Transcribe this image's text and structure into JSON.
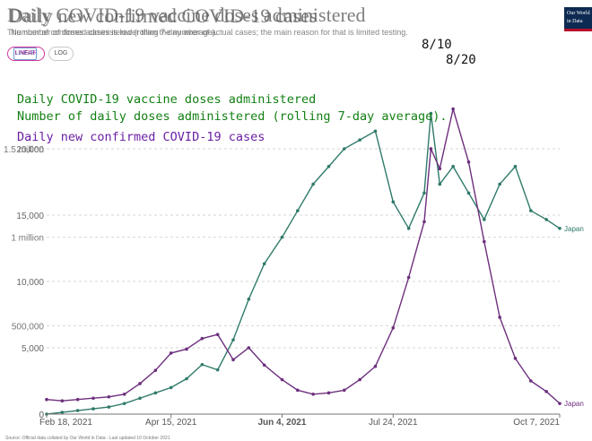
{
  "page": {
    "title_vaccine": "Daily COVID-19 vaccine doses administered",
    "title_cases": "Daily new confirmed COVID-19 cases",
    "subtitle_vaccine": "The number of doses administered (rolling 7-day average).",
    "subtitle_cases": "Number of confirmed cases is lower than the number of actual cases; the main reason for that is limited testing.",
    "source_note": "Source: Official data collated by Our World in Data - Last updated 10 October 2021",
    "logo_text": "Our World in Data"
  },
  "controls": {
    "linear_label": "LINEAR",
    "log_label": "LOG"
  },
  "annotations": {
    "vaccine_title": "Daily COVID-19 vaccine doses administered",
    "vaccine_sub": "Number of daily doses administered (rolling 7-day average).",
    "cases_title": "Daily new confirmed COVID-19 cases",
    "date_1": "8/10",
    "date_2": "8/20"
  },
  "colors": {
    "vaccine": "#2f7a6a",
    "cases": "#6d2f7d",
    "grid": "#d6d6d6",
    "axis": "#777777",
    "vaccine_text": "#138013",
    "cases_text": "#6a1fa3"
  },
  "chart_data": {
    "type": "line",
    "x_dates": [
      "2021-02-18",
      "2021-02-25",
      "2021-03-04",
      "2021-03-11",
      "2021-03-18",
      "2021-03-25",
      "2021-04-01",
      "2021-04-08",
      "2021-04-15",
      "2021-04-22",
      "2021-04-29",
      "2021-05-06",
      "2021-05-13",
      "2021-05-20",
      "2021-05-27",
      "2021-06-04",
      "2021-06-11",
      "2021-06-18",
      "2021-06-25",
      "2021-07-02",
      "2021-07-09",
      "2021-07-16",
      "2021-07-24",
      "2021-07-31",
      "2021-08-07",
      "2021-08-10",
      "2021-08-14",
      "2021-08-20",
      "2021-08-27",
      "2021-09-03",
      "2021-09-10",
      "2021-09-17",
      "2021-09-24",
      "2021-10-01",
      "2021-10-07"
    ],
    "series": [
      {
        "name": "Japan",
        "metric": "Daily COVID-19 vaccine doses administered",
        "unit": "doses",
        "values": [
          0,
          10000,
          20000,
          30000,
          40000,
          60000,
          90000,
          120000,
          150000,
          200000,
          280000,
          250000,
          420000,
          650000,
          850000,
          1000000,
          1150000,
          1300000,
          1400000,
          1500000,
          1550000,
          1600000,
          1200000,
          1050000,
          1250000,
          1700000,
          1300000,
          1400000,
          1250000,
          1100000,
          1300000,
          1400000,
          1150000,
          1100000,
          1050000
        ]
      },
      {
        "name": "Japan",
        "metric": "Daily new confirmed COVID-19 cases",
        "unit": "cases",
        "values": [
          1100,
          1000,
          1100,
          1200,
          1300,
          1500,
          2300,
          3300,
          4600,
          4900,
          5700,
          6000,
          4100,
          5000,
          3700,
          2600,
          1800,
          1500,
          1600,
          1800,
          2600,
          3600,
          6500,
          10300,
          14500,
          20000,
          18500,
          23000,
          19000,
          13000,
          7300,
          4200,
          2500,
          1700,
          800
        ]
      }
    ],
    "y_axis_left": {
      "label": "",
      "ticks": [
        "0",
        "5,000",
        "10,000",
        "15,000",
        "20,000"
      ],
      "range": [
        0,
        25000
      ]
    },
    "y_axis_right": {
      "label": "",
      "ticks": [
        "0",
        "500,000",
        "1 million",
        "1.5 million"
      ],
      "range": [
        0,
        1875000
      ]
    },
    "x_axis": {
      "ticks": [
        "Feb 18, 2021",
        "Apr 15, 2021",
        "Jun 4, 2021",
        "Jul 24, 2021",
        "Oct 7, 2021"
      ]
    },
    "end_label": "Japan",
    "grid": true,
    "legend": "none"
  }
}
